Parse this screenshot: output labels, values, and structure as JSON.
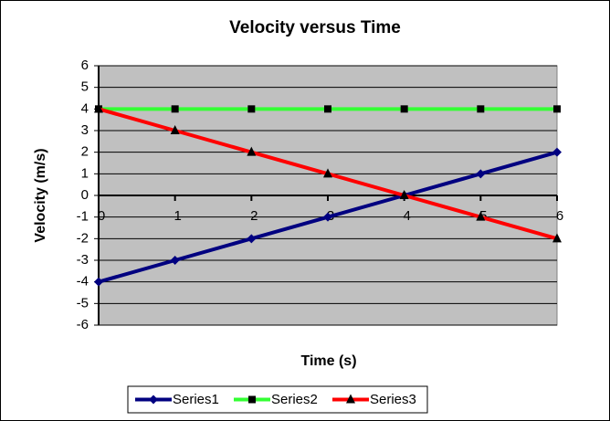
{
  "chart_data": {
    "type": "line",
    "title": "Velocity versus Time",
    "x_label": "Time (s)",
    "y_label": "Velocity (m/s)",
    "x": [
      0,
      1,
      2,
      3,
      4,
      5,
      6
    ],
    "xlim": [
      0,
      6
    ],
    "xticks": [
      0,
      1,
      2,
      3,
      4,
      5,
      6
    ],
    "ylim": [
      -6,
      6
    ],
    "yticks": [
      -6,
      -5,
      -4,
      -3,
      -2,
      -1,
      0,
      1,
      2,
      3,
      4,
      5,
      6
    ],
    "grid": true,
    "legend": "bottom",
    "series": [
      {
        "name": "Series1",
        "color": "#000080",
        "marker": "diamond",
        "marker_color": "#000080",
        "values": [
          -4,
          -3,
          -2,
          -1,
          0,
          1,
          2
        ]
      },
      {
        "name": "Series2",
        "color": "#33ff33",
        "marker": "square",
        "marker_color": "#000000",
        "values": [
          4,
          4,
          4,
          4,
          4,
          4,
          4
        ]
      },
      {
        "name": "Series3",
        "color": "#ff0000",
        "marker": "triangle",
        "marker_color": "#000000",
        "values": [
          4,
          3,
          2,
          1,
          0,
          -1,
          -2
        ]
      }
    ]
  }
}
